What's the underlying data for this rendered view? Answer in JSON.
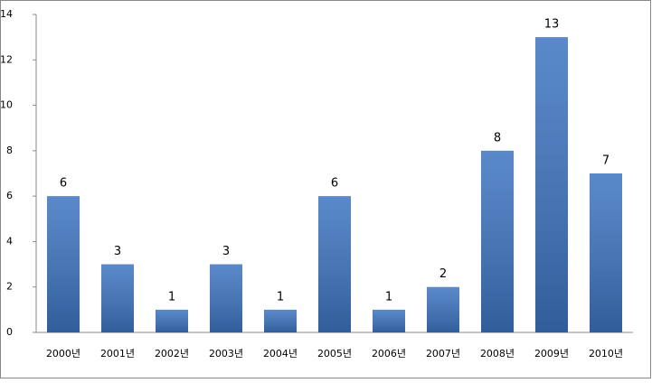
{
  "chart_data": {
    "type": "bar",
    "categories": [
      "2000년",
      "2001년",
      "2002년",
      "2003년",
      "2004년",
      "2005년",
      "2006년",
      "2007년",
      "2008년",
      "2009년",
      "2010년"
    ],
    "values": [
      6,
      3,
      1,
      3,
      1,
      6,
      1,
      2,
      8,
      13,
      7
    ],
    "color": "#3d74c0",
    "ylim": [
      0,
      14
    ],
    "yticks": [
      0,
      2,
      4,
      6,
      8,
      10,
      12,
      14
    ],
    "grid": false
  }
}
